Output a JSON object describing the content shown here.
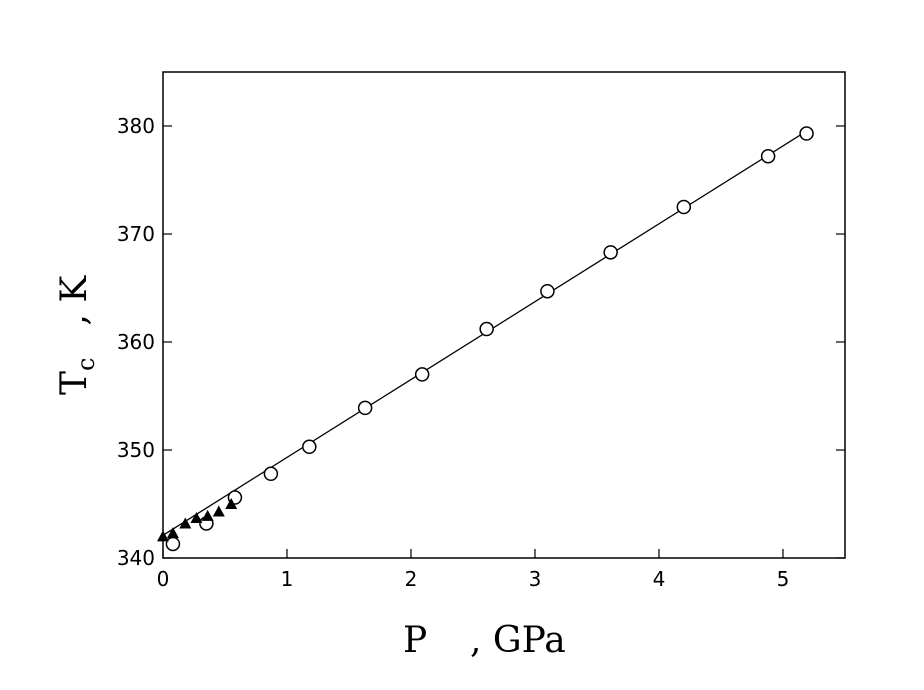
{
  "chart_data": {
    "type": "scatter",
    "title": "",
    "xlabel": {
      "main": "P",
      "unit": ", GPa"
    },
    "ylabel": {
      "main": "T",
      "sub": "c",
      "unit": ", K"
    },
    "xlim": [
      0,
      5.5
    ],
    "ylim": [
      340,
      385
    ],
    "xticks": [
      0,
      1,
      2,
      3,
      4,
      5
    ],
    "yticks": [
      340,
      350,
      360,
      370,
      380
    ],
    "grid": false,
    "legend": "none",
    "series": [
      {
        "marker": "open-circle",
        "x": [
          0.08,
          0.35,
          0.58,
          0.87,
          1.18,
          1.63,
          2.09,
          2.61,
          3.1,
          3.61,
          4.2,
          4.88,
          5.19
        ],
        "y": [
          341.3,
          343.2,
          345.6,
          347.8,
          350.3,
          353.9,
          357.0,
          361.2,
          364.7,
          368.3,
          372.5,
          377.2,
          379.3
        ]
      },
      {
        "marker": "filled-triangle",
        "x": [
          0.0,
          0.08,
          0.18,
          0.27,
          0.36,
          0.45,
          0.55
        ],
        "y": [
          342.0,
          342.3,
          343.2,
          343.7,
          343.9,
          344.3,
          345.0
        ]
      },
      {
        "marker": "line",
        "x": [
          0.0,
          5.2
        ],
        "y": [
          342.1,
          379.6
        ]
      }
    ]
  }
}
